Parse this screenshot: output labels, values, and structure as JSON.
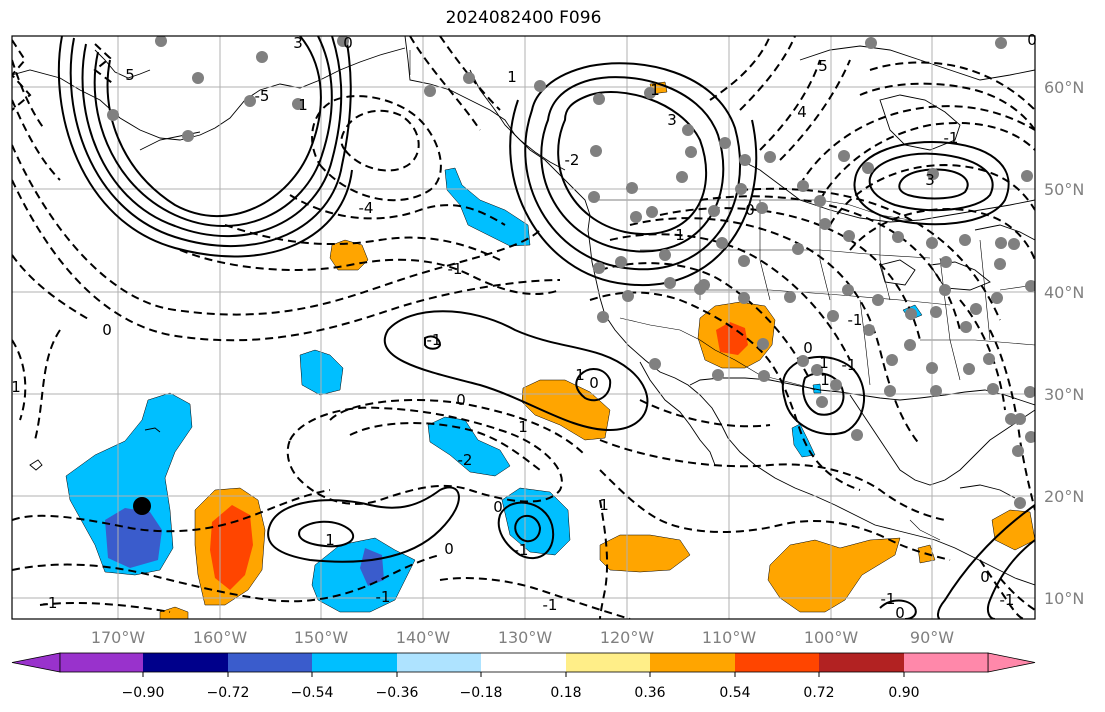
{
  "title": "2024082400 F096",
  "map": {
    "lon_labels": [
      "170°W",
      "160°W",
      "150°W",
      "140°W",
      "130°W",
      "120°W",
      "110°W",
      "100°W",
      "90°W"
    ],
    "lat_labels": [
      "60°N",
      "50°N",
      "40°N",
      "30°N",
      "20°N",
      "10°N"
    ],
    "contour_labels": [
      "5",
      "3",
      "1",
      "0",
      "1",
      "-2",
      "-5",
      "-4",
      "-1",
      "0",
      "-1",
      "1",
      "0",
      "1",
      "-1",
      "-2",
      "0",
      "-1",
      "-1",
      "1",
      "0",
      "1",
      "3",
      "5",
      "4",
      "-1",
      "0",
      "1",
      "-1",
      "1",
      "-1",
      "0",
      "0",
      "-1",
      "0",
      "1",
      "3",
      "-1",
      "0",
      "1",
      "-1",
      "1",
      "0"
    ],
    "shading_colors": {
      "strong_negative": "#3a5ccc",
      "negative": "#00bfff",
      "light_positive": "#ffa500",
      "strong_positive": "#ff4500"
    },
    "station_color": "#808080",
    "marker_color": "#000000"
  },
  "colorbar": {
    "tick_labels": [
      "−0.90",
      "−0.72",
      "−0.54",
      "−0.36",
      "−0.18",
      "0.18",
      "0.36",
      "0.54",
      "0.72",
      "0.90"
    ],
    "colors": [
      "#9932cc",
      "#00008b",
      "#3a5ccc",
      "#00bfff",
      "#aee3ff",
      "#ffffff",
      "#ffee88",
      "#ffa500",
      "#ff4500",
      "#b22222",
      "#ff88aa"
    ]
  }
}
